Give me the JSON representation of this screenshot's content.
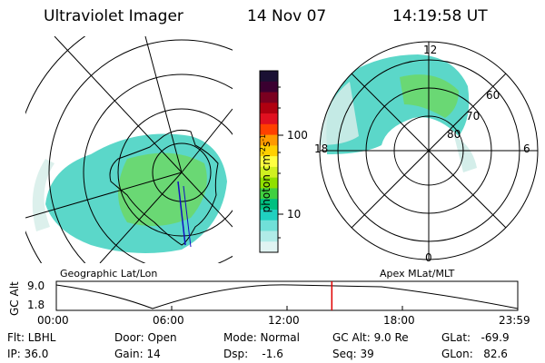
{
  "header": {
    "instrument": "Ultraviolet Imager",
    "date": "14 Nov 07",
    "time": "14:19:58 UT"
  },
  "left_map": {
    "caption": "Geographic Lat/Lon"
  },
  "right_map": {
    "caption": "Apex MLat/MLT",
    "mlt_labels": {
      "top": "12",
      "bottom": "0",
      "left": "18",
      "right": "6"
    },
    "lat_labels": [
      "60",
      "70",
      "80"
    ]
  },
  "colorbar": {
    "unit_label": "photon cm",
    "unit_exp1": "-2",
    "unit_s": "s",
    "unit_exp2": "-1",
    "ticks": [
      "100",
      "10"
    ],
    "colors": [
      "#1a1033",
      "#3a0030",
      "#7a0020",
      "#b00010",
      "#e01020",
      "#ff4000",
      "#ff9900",
      "#ffd000",
      "#ffff40",
      "#d0f020",
      "#90e000",
      "#40d040",
      "#00c080",
      "#20d0c0",
      "#70e0d8",
      "#b0ece8",
      "#e0f4f2"
    ]
  },
  "altitude_plot": {
    "ylabel": "GC Alt",
    "y_ticks": [
      "9.0",
      "1.8"
    ],
    "x_ticks": [
      "00:00",
      "06:00",
      "12:00",
      "18:00",
      "23:59"
    ],
    "current_time_hours": 14.33,
    "marker_color": "#e00000"
  },
  "status": {
    "row1": {
      "flt": "Flt: LBHL",
      "door": "Door: Open",
      "mode": "Mode: Normal",
      "gcalt": "GC Alt: 9.0 Re",
      "glat": "GLat:   -69.9"
    },
    "row2": {
      "ip": "IP: 36.0",
      "gain": "Gain: 14",
      "dsp": "Dsp:    -1.6",
      "seq": "Seq: 39",
      "glon": "GLon:   82.6"
    }
  }
}
